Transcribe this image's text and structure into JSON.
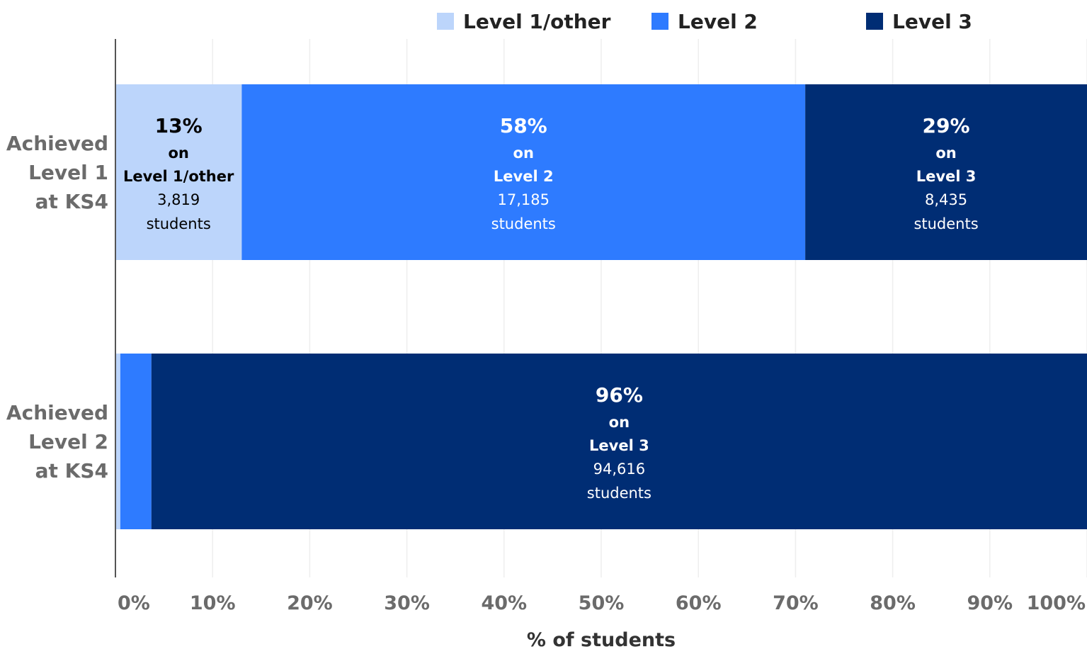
{
  "chart_data": {
    "type": "bar",
    "orientation": "horizontal",
    "stacked": true,
    "xlabel": "% of students",
    "xlim": [
      0,
      100
    ],
    "x_ticks": [
      "0%",
      "10%",
      "20%",
      "30%",
      "40%",
      "50%",
      "60%",
      "70%",
      "80%",
      "90%",
      "100%"
    ],
    "grid": true,
    "legend_position": "top",
    "categories": [
      {
        "id": "level1",
        "lines": [
          "Achieved",
          "Level 1",
          "at KS4"
        ]
      },
      {
        "id": "level2",
        "lines": [
          "Achieved",
          "Level 2",
          "at KS4"
        ]
      }
    ],
    "series": [
      {
        "name": "Level 1/other",
        "color": "#bcd5fb",
        "values": [
          13,
          0.5
        ]
      },
      {
        "name": "Level 2",
        "color": "#2e7bff",
        "values": [
          58,
          3.2
        ]
      },
      {
        "name": "Level 3",
        "color": "#002d74",
        "values": [
          29,
          96.3
        ]
      }
    ],
    "annotations": [
      {
        "category": 0,
        "series": 0,
        "pct": "13%",
        "on": "on",
        "level": "Level 1/other",
        "count": "3,819",
        "unit": "students",
        "color": "#000000"
      },
      {
        "category": 0,
        "series": 1,
        "pct": "58%",
        "on": "on",
        "level": "Level 2",
        "count": "17,185",
        "unit": "students",
        "color": "#ffffff"
      },
      {
        "category": 0,
        "series": 2,
        "pct": "29%",
        "on": "on",
        "level": "Level 3",
        "count": "8,435",
        "unit": "students",
        "color": "#ffffff"
      },
      {
        "category": 1,
        "series": 2,
        "pct": "96%",
        "on": "on",
        "level": "Level 3",
        "count": "94,616",
        "unit": "students",
        "color": "#ffffff"
      }
    ]
  }
}
